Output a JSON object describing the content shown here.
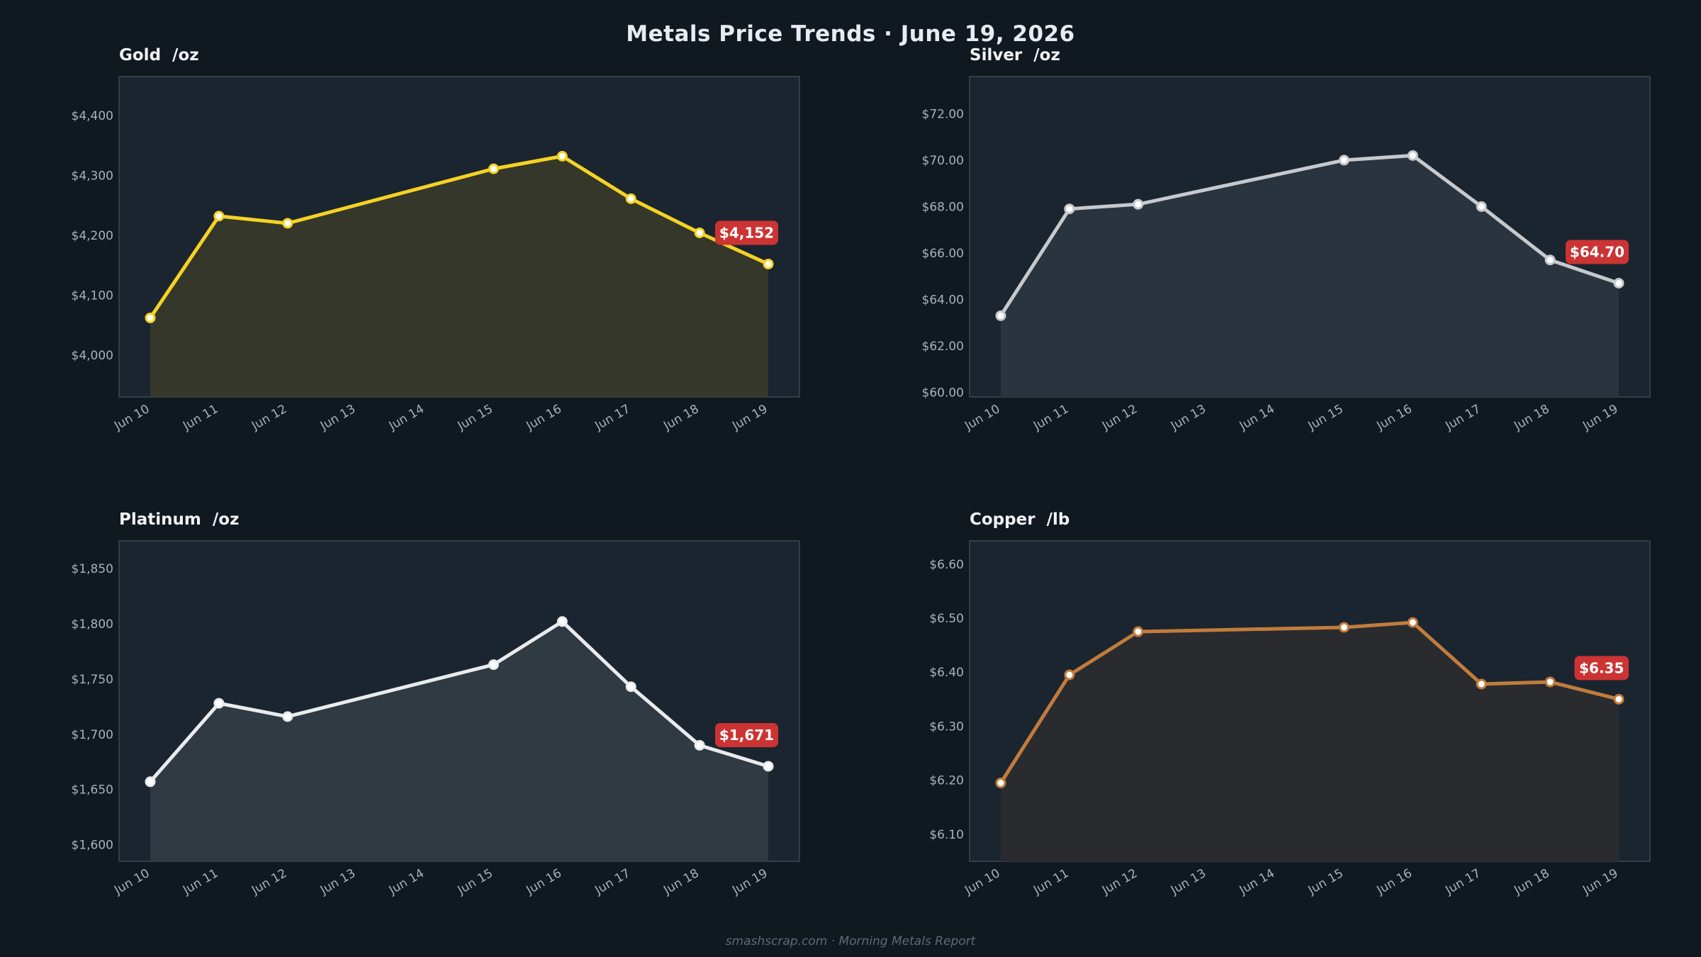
{
  "title": "Metals Price Trends  ·  June 19, 2026",
  "footer": "smashscrap.com  ·  Morning Metals Report",
  "chart_data": [
    {
      "type": "area",
      "title": "Gold  /oz",
      "color": "#f5d224",
      "fill": "#34372a",
      "categories": [
        "Jun 10",
        "Jun 11",
        "Jun 12",
        "Jun 13",
        "Jun 14",
        "Jun 15",
        "Jun 16",
        "Jun 17",
        "Jun 18",
        "Jun 19"
      ],
      "x": [
        "Jun 10",
        "Jun 11",
        "Jun 12",
        "Jun 15",
        "Jun 16",
        "Jun 17",
        "Jun 18",
        "Jun 19"
      ],
      "values": [
        4062,
        4232,
        4220,
        4311,
        4332,
        4261,
        4204,
        4152
      ],
      "yticks": [
        4000,
        4100,
        4200,
        4300,
        4400
      ],
      "ytick_labels": [
        "$4,000",
        "$4,100",
        "$4,200",
        "$4,300",
        "$4,400"
      ],
      "ylim": [
        3930,
        4465
      ],
      "last_label": "$4,152",
      "grid": false
    },
    {
      "type": "area",
      "title": "Silver  /oz",
      "color": "#c6c9cd",
      "fill": "#2a343e",
      "categories": [
        "Jun 10",
        "Jun 11",
        "Jun 12",
        "Jun 13",
        "Jun 14",
        "Jun 15",
        "Jun 16",
        "Jun 17",
        "Jun 18",
        "Jun 19"
      ],
      "x": [
        "Jun 10",
        "Jun 11",
        "Jun 12",
        "Jun 15",
        "Jun 16",
        "Jun 17",
        "Jun 18",
        "Jun 19"
      ],
      "values": [
        63.3,
        67.9,
        68.1,
        70.0,
        70.2,
        68.0,
        65.7,
        64.7
      ],
      "yticks": [
        60,
        62,
        64,
        66,
        68,
        70,
        72
      ],
      "ytick_labels": [
        "$60.00",
        "$62.00",
        "$64.00",
        "$66.00",
        "$68.00",
        "$70.00",
        "$72.00"
      ],
      "ylim": [
        59.8,
        73.6
      ],
      "last_label": "$64.70",
      "grid": false
    },
    {
      "type": "area",
      "title": "Platinum  /oz",
      "color": "#e9ebed",
      "fill": "#2f3a42",
      "categories": [
        "Jun 10",
        "Jun 11",
        "Jun 12",
        "Jun 13",
        "Jun 14",
        "Jun 15",
        "Jun 16",
        "Jun 17",
        "Jun 18",
        "Jun 19"
      ],
      "x": [
        "Jun 10",
        "Jun 11",
        "Jun 12",
        "Jun 15",
        "Jun 16",
        "Jun 17",
        "Jun 18",
        "Jun 19"
      ],
      "values": [
        1657,
        1728,
        1716,
        1763,
        1802,
        1743,
        1690,
        1671
      ],
      "yticks": [
        1600,
        1650,
        1700,
        1750,
        1800,
        1850
      ],
      "ytick_labels": [
        "$1,600",
        "$1,650",
        "$1,700",
        "$1,750",
        "$1,800",
        "$1,850"
      ],
      "ylim": [
        1585,
        1875
      ],
      "last_label": "$1,671",
      "grid": false
    },
    {
      "type": "area",
      "title": "Copper  /lb",
      "color": "#c27c3c",
      "fill": "#2a2b2f",
      "categories": [
        "Jun 10",
        "Jun 11",
        "Jun 12",
        "Jun 13",
        "Jun 14",
        "Jun 15",
        "Jun 16",
        "Jun 17",
        "Jun 18",
        "Jun 19"
      ],
      "x": [
        "Jun 10",
        "Jun 11",
        "Jun 12",
        "Jun 15",
        "Jun 16",
        "Jun 17",
        "Jun 18",
        "Jun 19"
      ],
      "values": [
        6.195,
        6.395,
        6.475,
        6.483,
        6.492,
        6.378,
        6.382,
        6.35
      ],
      "yticks": [
        6.1,
        6.2,
        6.3,
        6.4,
        6.5,
        6.6
      ],
      "ytick_labels": [
        "$6.10",
        "$6.20",
        "$6.30",
        "$6.40",
        "$6.50",
        "$6.60"
      ],
      "ylim": [
        6.05,
        6.643
      ],
      "last_label": "$6.35",
      "grid": false
    }
  ]
}
